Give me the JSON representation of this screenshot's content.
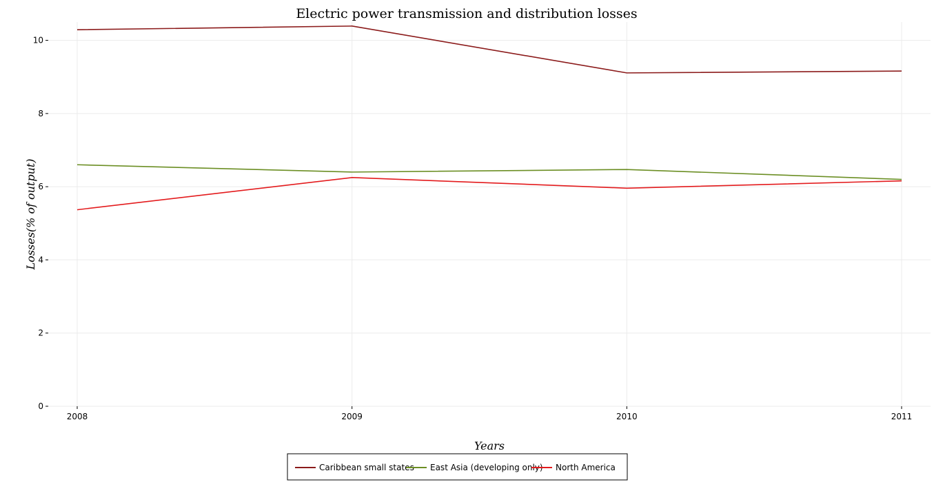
{
  "chart_data": {
    "type": "line",
    "title": "Electric power transmission and distribution losses",
    "xlabel": "Years",
    "ylabel": "Losses(% of output)",
    "x": [
      "2008",
      "2009",
      "2010",
      "2011"
    ],
    "ylim": [
      0,
      10.5
    ],
    "yticks": [
      0,
      2,
      4,
      6,
      8,
      10
    ],
    "grid": true,
    "legend_position": "bottom-center",
    "series": [
      {
        "name": "Caribbean small states",
        "color": "#8b1a1a",
        "values": [
          10.29,
          10.39,
          9.11,
          9.16
        ]
      },
      {
        "name": "East Asia (developing only)",
        "color": "#6b8e23",
        "values": [
          6.6,
          6.4,
          6.47,
          6.2
        ]
      },
      {
        "name": "North America",
        "color": "#e31a1c",
        "values": [
          5.37,
          6.25,
          5.96,
          6.16
        ]
      }
    ]
  }
}
